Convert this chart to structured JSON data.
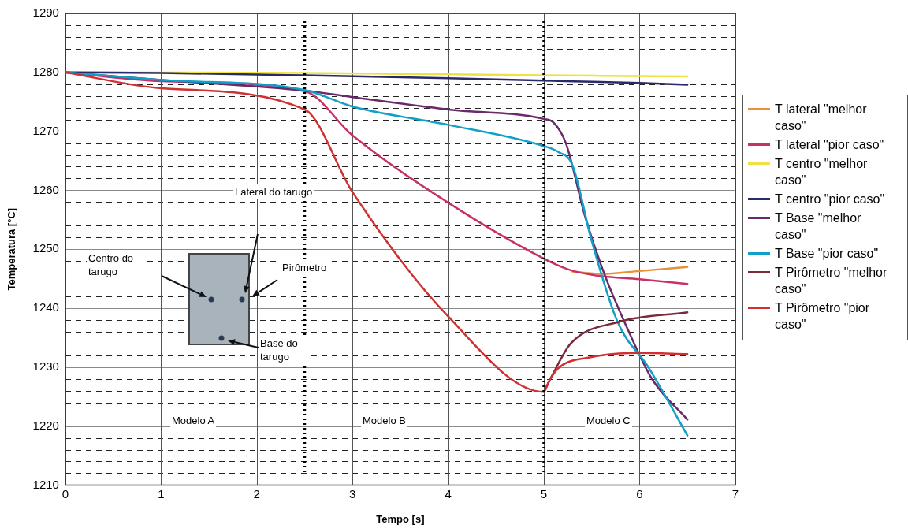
{
  "chart_data": {
    "type": "line",
    "xlabel": "Tempo [s]",
    "ylabel": "Temperatura [°C]",
    "xlim": [
      0,
      7
    ],
    "xticks": [
      0,
      1,
      2,
      3,
      4,
      5,
      6,
      7
    ],
    "ylim": [
      1210,
      1290
    ],
    "yticks": [
      1210,
      {
        "value": 1212,
        "label": null
      },
      {
        "value": 1214,
        "label": null
      },
      {
        "value": 1216,
        "label": null
      },
      {
        "value": 1218,
        "label": null
      },
      1220,
      {
        "value": 1222,
        "label": null
      },
      {
        "value": 1224,
        "label": null
      },
      {
        "value": 1226,
        "label": null
      },
      {
        "value": 1228,
        "label": null
      },
      1230,
      {
        "value": 1232,
        "label": null
      },
      {
        "value": 1234,
        "label": null
      },
      {
        "value": 1236,
        "label": null
      },
      {
        "value": 1238,
        "label": null
      },
      1240,
      {
        "value": 1242,
        "label": null
      },
      {
        "value": 1244,
        "label": null
      },
      {
        "value": 1246,
        "label": null
      },
      {
        "value": 1248,
        "label": null
      },
      1250,
      {
        "value": 1252,
        "label": null
      },
      {
        "value": 1254,
        "label": null
      },
      {
        "value": 1256,
        "label": null
      },
      {
        "value": 1258,
        "label": null
      },
      1260,
      {
        "value": 1262,
        "label": null
      },
      {
        "value": 1264,
        "label": null
      },
      {
        "value": 1266,
        "label": null
      },
      {
        "value": 1268,
        "label": null
      },
      1270,
      {
        "value": 1272,
        "label": null
      },
      {
        "value": 1274,
        "label": null
      },
      {
        "value": 1276,
        "label": null
      },
      {
        "value": 1278,
        "label": null
      },
      1280,
      {
        "value": 1282,
        "label": null
      },
      {
        "value": 1284,
        "label": null
      },
      {
        "value": 1286,
        "label": null
      },
      {
        "value": 1288,
        "label": null
      },
      1290
    ],
    "grid": true,
    "legend": "right",
    "series": [
      {
        "name": "T lateral \"melhor caso\"",
        "color": "#e8903a",
        "x": [
          5.3,
          5.6,
          6,
          6.5
        ],
        "values": [
          1246.2,
          1245.8,
          1246.3,
          1247
        ]
      },
      {
        "name": "T lateral \"pior caso\"",
        "color": "#c8306a",
        "x": [
          0,
          1,
          2.5,
          3,
          4,
          5,
          5.25,
          5.52,
          6,
          6.5
        ],
        "values": [
          1280,
          1278.5,
          1276.8,
          1269.3,
          1257.9,
          1248.4,
          1246.6,
          1245.6,
          1244.9,
          1244.1
        ]
      },
      {
        "name": "T centro \"melhor caso\"",
        "color": "#f0e040",
        "x": [
          0,
          2.5,
          5,
          6.5
        ],
        "values": [
          1280,
          1279.9,
          1279.5,
          1279.3
        ]
      },
      {
        "name": "T centro \"pior caso\"",
        "color": "#2a2a6a",
        "x": [
          0,
          1,
          2.5,
          4,
          5,
          6,
          6.5
        ],
        "values": [
          1280,
          1279.9,
          1279.5,
          1279,
          1278.6,
          1278.2,
          1277.9
        ]
      },
      {
        "name": "T Base \"melhor caso\"",
        "color": "#6a2a6a",
        "x": [
          0,
          1,
          2.5,
          3,
          4,
          5,
          5.1,
          5.23,
          5.43,
          5.63,
          5.88,
          6.13,
          6.5
        ],
        "values": [
          1280,
          1278.7,
          1276.9,
          1275.8,
          1273.7,
          1272.1,
          1271.5,
          1268,
          1255.6,
          1245.9,
          1236.3,
          1228,
          1221.1
        ]
      },
      {
        "name": "T Base \"pior caso\"",
        "color": "#10a0c8",
        "x": [
          0,
          1,
          2.5,
          3,
          4,
          5,
          5.15,
          5.3,
          5.5,
          5.77,
          6.1,
          6.5
        ],
        "values": [
          1280,
          1278.7,
          1277,
          1274.2,
          1271.1,
          1267.5,
          1266.5,
          1264.2,
          1251.4,
          1237.7,
          1229.8,
          1218.4
        ]
      },
      {
        "name": "T Pirômetro \"melhor caso\"",
        "color": "#7a2a3a",
        "x": [
          5,
          5.1,
          5.28,
          5.79,
          6.5
        ],
        "values": [
          1225.8,
          1229,
          1234,
          1237.7,
          1239.3
        ]
      },
      {
        "name": "T Pirômetro \"pior caso\"",
        "color": "#d03030",
        "x": [
          0,
          1,
          2.5,
          3,
          4,
          5,
          5.05,
          5.15,
          5.5,
          6,
          6.5
        ],
        "values": [
          1280,
          1277.3,
          1273.7,
          1259.7,
          1238.6,
          1225.8,
          1227.5,
          1229.8,
          1231.7,
          1232.4,
          1232.2
        ]
      }
    ],
    "ref_lines": [
      {
        "axis": "x",
        "value": 2.5,
        "line_style": "dotted",
        "color": "#000000"
      },
      {
        "axis": "x",
        "value": 5,
        "line_style": "dotted",
        "color": "#000000"
      }
    ],
    "annotations": [
      "Lateral do tarugo",
      "Centro do tarugo",
      "Pirômetro",
      "Base do tarugo",
      "Modelo A",
      "Modelo B",
      "Modelo C"
    ]
  }
}
